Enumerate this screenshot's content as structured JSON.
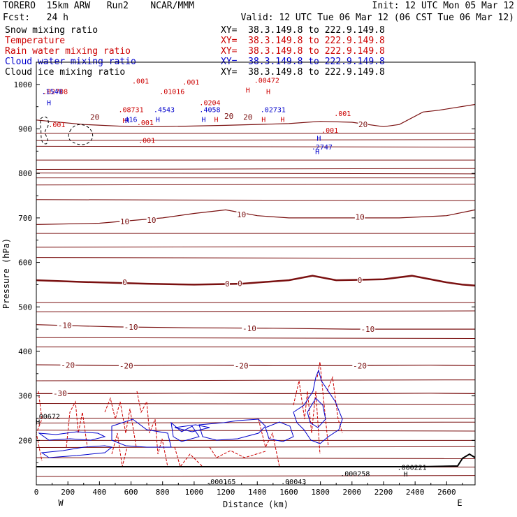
{
  "header": {
    "model": "TORERO  15km ARW   Run2    NCAR/MMM",
    "init": "Init: 12 UTC Mon 05 Mar 12",
    "fcst": "Fcst:   24 h",
    "valid": "Valid: 12 UTC Tue 06 Mar 12 (06 CST Tue 06 Mar 12)"
  },
  "legend": [
    {
      "label": "Snow mixing ratio",
      "xy": "XY=  38.3.149.8 to 222.9.149.8",
      "color": "#000000"
    },
    {
      "label": "Temperature",
      "xy": "XY=  38.3.149.8 to 222.9.149.8",
      "color": "#cc0000"
    },
    {
      "label": "Rain water mixing ratio",
      "xy": "XY=  38.3.149.8 to 222.9.149.8",
      "color": "#cc0000"
    },
    {
      "label": "Cloud water mixing ratio",
      "xy": "XY=  38.3.149.8 to 222.9.149.8",
      "color": "#0000cc"
    },
    {
      "label": "Cloud ice mixing ratio",
      "xy": "XY=  38.3.149.8 to 222.9.149.8",
      "color": "#000000"
    }
  ],
  "chart_data": {
    "type": "contour cross-section",
    "xlabel": "Distance (km)",
    "ylabel": "Pressure (hPa)",
    "xlim": [
      0,
      2780
    ],
    "ylim": [
      1050,
      100
    ],
    "x_ticks": [
      "0",
      "200",
      "400",
      "600",
      "800",
      "1000",
      "1200",
      "1400",
      "1600",
      "1800",
      "2000",
      "2200",
      "2400",
      "2600"
    ],
    "y_ticks": [
      "200",
      "300",
      "400",
      "500",
      "600",
      "700",
      "800",
      "900",
      "1000"
    ],
    "y_tick_values": [
      200,
      300,
      400,
      500,
      600,
      700,
      800,
      900,
      1000
    ],
    "endpoints": {
      "left": "W",
      "right": "E"
    },
    "temperature_isotherms": [
      {
        "value": -30,
        "label": "-30",
        "x": [
          0,
          500,
          1000,
          1500,
          2000,
          2500,
          2780
        ],
        "p": [
          305,
          305,
          306,
          305,
          305,
          306,
          305
        ]
      },
      {
        "value": -20,
        "label": "-20",
        "x": [
          0,
          500,
          1000,
          1500,
          2000,
          2500,
          2780
        ],
        "p": [
          370,
          368,
          369,
          368,
          368,
          369,
          368
        ]
      },
      {
        "value": -10,
        "label": "-10",
        "x": [
          0,
          500,
          1000,
          1500,
          2000,
          2500,
          2780
        ],
        "p": [
          460,
          455,
          453,
          452,
          450,
          450,
          450
        ]
      },
      {
        "value": 0,
        "label": "0",
        "x": [
          0,
          300,
          700,
          1000,
          1300,
          1600,
          1750,
          1900,
          2200,
          2380,
          2600,
          2700,
          2780
        ],
        "p": [
          560,
          556,
          552,
          550,
          552,
          560,
          570,
          560,
          562,
          570,
          555,
          550,
          548
        ]
      },
      {
        "value": 10,
        "label": "10",
        "x": [
          0,
          400,
          800,
          1000,
          1200,
          1400,
          1600,
          1800,
          2000,
          2300,
          2600,
          2780
        ],
        "p": [
          685,
          688,
          700,
          710,
          718,
          705,
          700,
          700,
          700,
          700,
          705,
          718
        ]
      },
      {
        "value": 20,
        "label": "20",
        "x": [
          0,
          300,
          600,
          800,
          1200,
          1600,
          1800,
          2000,
          2200,
          2300,
          2450,
          2550,
          2780
        ],
        "p": [
          920,
          910,
          905,
          905,
          908,
          912,
          917,
          915,
          905,
          910,
          938,
          942,
          955
        ]
      }
    ],
    "unlabeled_isotherms_p": [
      120,
      140,
      160,
      185,
      200,
      222,
      240,
      250,
      282,
      335,
      410,
      430,
      490,
      510,
      610,
      635,
      665,
      740,
      775,
      790,
      800,
      810,
      830,
      860,
      875,
      890
    ],
    "contour_labels": [
      {
        "series": "Temperature",
        "text": "-30",
        "x": 150,
        "p": 306
      },
      {
        "series": "Temperature",
        "text": "-20",
        "x": 200,
        "p": 369
      },
      {
        "series": "Temperature",
        "text": "-20",
        "x": 570,
        "p": 368
      },
      {
        "series": "Temperature",
        "text": "-20",
        "x": 1300,
        "p": 368
      },
      {
        "series": "Temperature",
        "text": "-20",
        "x": 2050,
        "p": 368
      },
      {
        "series": "Temperature",
        "text": "-10",
        "x": 180,
        "p": 459
      },
      {
        "series": "Temperature",
        "text": "-10",
        "x": 600,
        "p": 455
      },
      {
        "series": "Temperature",
        "text": "-10",
        "x": 1350,
        "p": 452
      },
      {
        "series": "Temperature",
        "text": "-10",
        "x": 2100,
        "p": 450
      },
      {
        "series": "Temperature",
        "text": "0",
        "x": 560,
        "p": 555
      },
      {
        "series": "Temperature",
        "text": "0",
        "x": 1210,
        "p": 552
      },
      {
        "series": "Temperature",
        "text": "0",
        "x": 1290,
        "p": 553
      },
      {
        "series": "Temperature",
        "text": "0",
        "x": 2050,
        "p": 560
      },
      {
        "series": "Temperature",
        "text": "10",
        "x": 560,
        "p": 692
      },
      {
        "series": "Temperature",
        "text": "10",
        "x": 730,
        "p": 695
      },
      {
        "series": "Temperature",
        "text": "10",
        "x": 1300,
        "p": 708
      },
      {
        "series": "Temperature",
        "text": "10",
        "x": 2050,
        "p": 702
      },
      {
        "series": "Temperature",
        "text": "20",
        "x": 370,
        "p": 927
      },
      {
        "series": "Temperature",
        "text": "20",
        "x": 1220,
        "p": 929
      },
      {
        "series": "Temperature",
        "text": "20",
        "x": 1340,
        "p": 927
      },
      {
        "series": "Temperature",
        "text": "20",
        "x": 2070,
        "p": 910
      }
    ],
    "extrema_labels": [
      {
        "series": "Snow mixing ratio",
        "text": "H",
        "x": 10,
        "p": 242,
        "color": "#000000"
      },
      {
        "series": "Snow mixing ratio",
        "text": ".00672",
        "x": 70,
        "p": 255,
        "color": "#000000"
      },
      {
        "series": "Cloud ice mixing ratio",
        "text": ".000165",
        "x": 1170,
        "p": 108,
        "color": "#000000"
      },
      {
        "series": "Cloud ice mixing ratio",
        "text": ".00043",
        "x": 1630,
        "p": 108,
        "color": "#000000"
      },
      {
        "series": "Cloud ice mixing ratio",
        "text": ".000258",
        "x": 2020,
        "p": 126,
        "color": "#000000"
      },
      {
        "series": "Cloud ice mixing ratio",
        "text": "H",
        "x": 2340,
        "p": 125,
        "color": "#000000"
      },
      {
        "series": "Cloud ice mixing ratio",
        "text": ".000221",
        "x": 2380,
        "p": 140,
        "color": "#000000"
      },
      {
        "series": "Rain water mixing ratio",
        "text": ".001",
        "x": 130,
        "p": 910,
        "color": "#cc0000"
      },
      {
        "series": "Rain water mixing ratio",
        "text": ".001",
        "x": 700,
        "p": 875,
        "color": "#cc0000"
      },
      {
        "series": "Rain water mixing ratio",
        "text": ".001",
        "x": 690,
        "p": 915,
        "color": "#cc0000"
      },
      {
        "series": "Rain water mixing ratio",
        "text": ".08731",
        "x": 600,
        "p": 944,
        "color": "#cc0000"
      },
      {
        "series": "Rain water mixing ratio",
        "text": ".02708",
        "x": 120,
        "p": 985,
        "color": "#cc0000"
      },
      {
        "series": "Rain water mixing ratio",
        "text": ".01016",
        "x": 860,
        "p": 985,
        "color": "#cc0000"
      },
      {
        "series": "Rain water mixing ratio",
        "text": ".0204",
        "x": 1100,
        "p": 960,
        "color": "#cc0000"
      },
      {
        "series": "Rain water mixing ratio",
        "text": ".00472",
        "x": 1460,
        "p": 1010,
        "color": "#cc0000"
      },
      {
        "series": "Rain water mixing ratio",
        "text": ".001",
        "x": 660,
        "p": 1008,
        "color": "#cc0000"
      },
      {
        "series": "Rain water mixing ratio",
        "text": ".001",
        "x": 980,
        "p": 1006,
        "color": "#cc0000"
      },
      {
        "series": "Rain water mixing ratio",
        "text": ".001",
        "x": 1860,
        "p": 898,
        "color": "#cc0000"
      },
      {
        "series": "Rain water mixing ratio",
        "text": ".001",
        "x": 1940,
        "p": 935,
        "color": "#cc0000"
      },
      {
        "series": "Cloud water mixing ratio",
        "text": ".1540",
        "x": 100,
        "p": 985,
        "color": "#0000cc"
      },
      {
        "series": "Cloud water mixing ratio",
        "text": "416",
        "x": 600,
        "p": 922,
        "color": "#0000cc"
      },
      {
        "series": "Cloud water mixing ratio",
        "text": ".4543",
        "x": 810,
        "p": 944,
        "color": "#0000cc"
      },
      {
        "series": "Cloud water mixing ratio",
        "text": ".4058",
        "x": 1100,
        "p": 944,
        "color": "#0000cc"
      },
      {
        "series": "Cloud water mixing ratio",
        "text": ".02731",
        "x": 1500,
        "p": 944,
        "color": "#0000cc"
      },
      {
        "series": "Cloud water mixing ratio",
        "text": ".2747",
        "x": 1810,
        "p": 860,
        "color": "#0000cc"
      }
    ],
    "h_markers": [
      {
        "series": "Rain water mixing ratio",
        "text": "H",
        "x": 80,
        "p": 960,
        "color": "#0000cc"
      },
      {
        "series": "Rain water mixing ratio",
        "text": "H",
        "x": 560,
        "p": 920,
        "color": "#cc0000"
      },
      {
        "series": "Cloud water mixing ratio",
        "text": "H",
        "x": 575,
        "p": 920,
        "color": "#0000cc"
      },
      {
        "series": "Cloud water mixing ratio",
        "text": "H",
        "x": 770,
        "p": 922,
        "color": "#0000cc"
      },
      {
        "series": "Cloud water mixing ratio",
        "text": "H",
        "x": 1060,
        "p": 922,
        "color": "#0000cc"
      },
      {
        "series": "Rain water mixing ratio",
        "text": "H",
        "x": 1140,
        "p": 922,
        "color": "#cc0000"
      },
      {
        "series": "Rain water mixing ratio",
        "text": "H",
        "x": 1340,
        "p": 988,
        "color": "#cc0000"
      },
      {
        "series": "Rain water mixing ratio",
        "text": "H",
        "x": 1440,
        "p": 922,
        "color": "#cc0000"
      },
      {
        "series": "Rain water mixing ratio",
        "text": "H",
        "x": 1560,
        "p": 922,
        "color": "#cc0000"
      },
      {
        "series": "Rain water mixing ratio",
        "text": "H",
        "x": 1470,
        "p": 985,
        "color": "#cc0000"
      },
      {
        "series": "Cloud water mixing ratio",
        "text": "H",
        "x": 1780,
        "p": 850,
        "color": "#0000cc"
      },
      {
        "series": "Cloud water mixing ratio",
        "text": "H",
        "x": 1790,
        "p": 880,
        "color": "#0000cc"
      }
    ]
  }
}
